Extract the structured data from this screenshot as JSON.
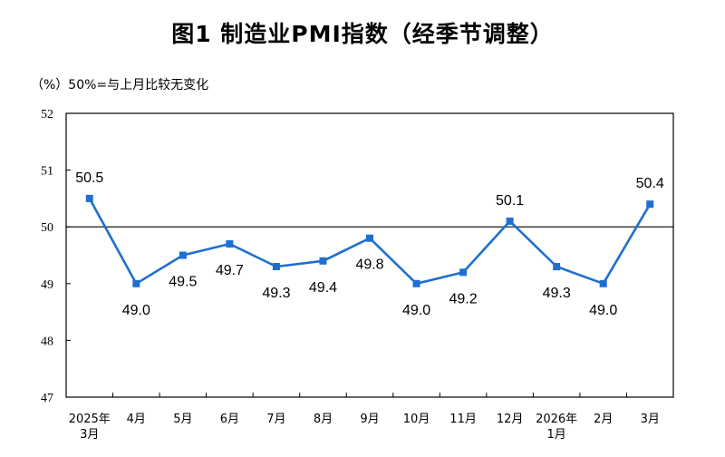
{
  "title": "图1  制造业PMI指数（经季节调整）",
  "unit_note": "（%）50%=与上月比较无变化",
  "colors": {
    "series": "#1f6fd1",
    "frame": "#000000",
    "reference": "#000000"
  },
  "chart_data": {
    "type": "line",
    "title": "图1  制造业PMI指数（经季节调整）",
    "ylabel": "（%）50%=与上月比较无变化",
    "xlabel": "",
    "ylim": [
      47,
      52
    ],
    "yticks": [
      47,
      48,
      49,
      50,
      51,
      52
    ],
    "reference_line": 50,
    "grid": false,
    "categories": [
      [
        "2025年",
        "3月"
      ],
      [
        "4月"
      ],
      [
        "5月"
      ],
      [
        "6月"
      ],
      [
        "7月"
      ],
      [
        "8月"
      ],
      [
        "9月"
      ],
      [
        "10月"
      ],
      [
        "11月"
      ],
      [
        "12月"
      ],
      [
        "2026年",
        "1月"
      ],
      [
        "2月"
      ],
      [
        "3月"
      ]
    ],
    "series": [
      {
        "values": [
          50.5,
          49.0,
          49.5,
          49.7,
          49.3,
          49.4,
          49.8,
          49.0,
          49.2,
          50.1,
          49.3,
          49.0,
          50.4
        ],
        "labels": [
          "50.5",
          "49.0",
          "49.5",
          "49.7",
          "49.3",
          "49.4",
          "49.8",
          "49.0",
          "49.2",
          "50.1",
          "49.3",
          "49.0",
          "50.4"
        ],
        "label_position": [
          "above",
          "below",
          "below",
          "below",
          "below",
          "below",
          "below",
          "below",
          "below",
          "above",
          "below",
          "below",
          "above"
        ]
      }
    ]
  }
}
